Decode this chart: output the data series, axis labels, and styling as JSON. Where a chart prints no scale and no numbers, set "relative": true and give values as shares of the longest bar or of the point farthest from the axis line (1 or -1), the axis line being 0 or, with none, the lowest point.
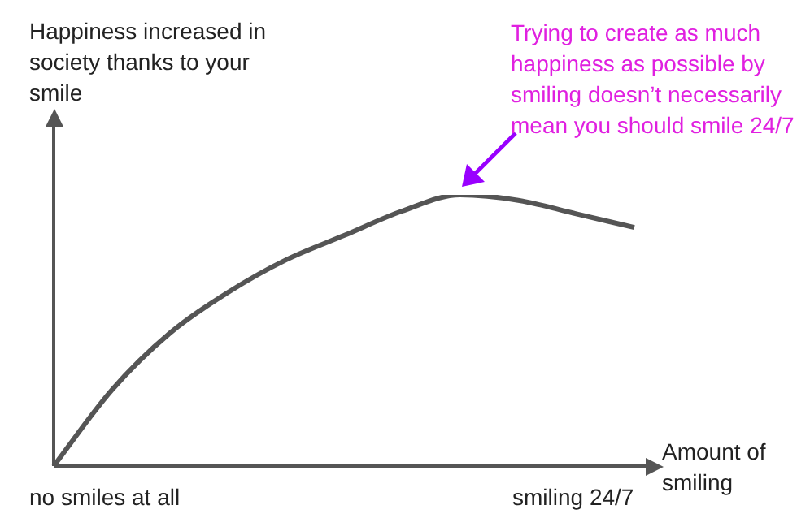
{
  "chart_data": {
    "type": "line",
    "relative": true,
    "xlabel": "Amount of smiling",
    "ylabel": "Happiness increased in society thanks to your smile",
    "categories": [
      null,
      null,
      null,
      null,
      null,
      null,
      null,
      null,
      null,
      null,
      null
    ],
    "series": [
      {
        "color": "#555555",
        "values": [
          0,
          0.28,
          0.49,
          0.64,
          0.76,
          0.85,
          0.94,
          1,
          0.98,
          0.93,
          0.88
        ]
      }
    ],
    "marker": "none",
    "line_style": "solid",
    "legend": false,
    "annotations": [
      "Trying to create as much happiness as possible by smiling doesn’t necessarily mean you should smile 24/7",
      "no smiles at all",
      "smiling 24/7"
    ]
  }
}
